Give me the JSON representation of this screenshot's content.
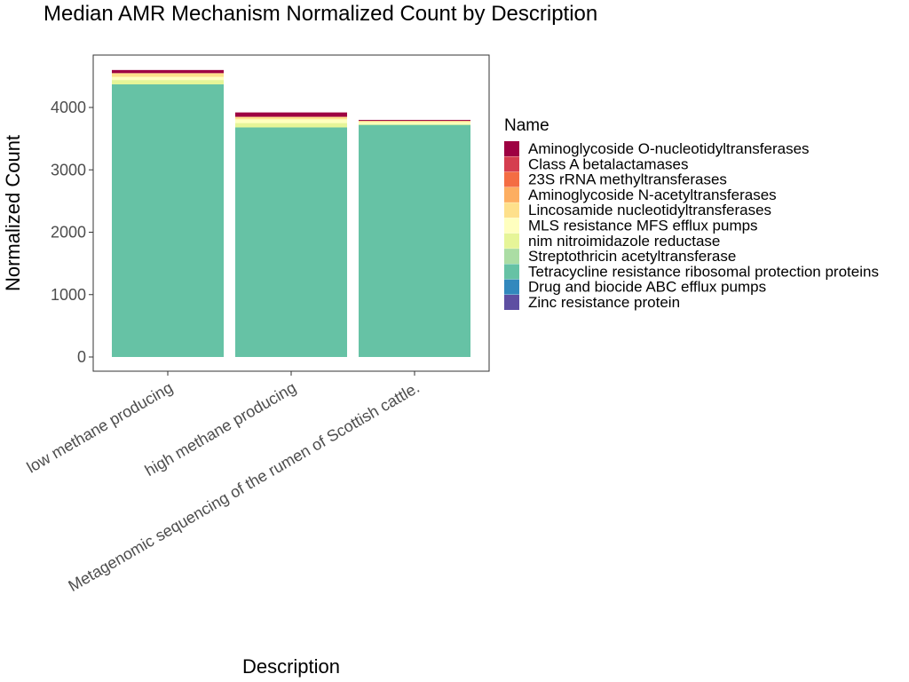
{
  "chart_data": {
    "type": "bar",
    "stacked": true,
    "title": "Median AMR Mechanism Normalized Count by Description",
    "xlabel": "Description",
    "ylabel": "Normalized Count",
    "ylim": [
      -230,
      4780
    ],
    "yticks": [
      0,
      1000,
      2000,
      3000,
      4000
    ],
    "grid": false,
    "legend_position": "right",
    "legend_title": "Name",
    "categories": [
      "low methane producing",
      "high methane producing",
      "Metagenomic sequencing of the rumen of Scottish cattle."
    ],
    "series": [
      {
        "name": "Aminoglycoside O-nucleotidyltransferases",
        "color": "#9E0142",
        "values": [
          50,
          70,
          15
        ]
      },
      {
        "name": "Class A betalactamases",
        "color": "#D53E4F",
        "values": [
          0,
          0,
          0
        ]
      },
      {
        "name": "23S rRNA methyltransferases",
        "color": "#F46D43",
        "values": [
          0,
          0,
          0
        ]
      },
      {
        "name": "Aminoglycoside N-acetyltransferases",
        "color": "#FDAE61",
        "values": [
          0,
          0,
          0
        ]
      },
      {
        "name": "Lincosamide nucleotidyltransferases",
        "color": "#FEE08B",
        "values": [
          60,
          40,
          20
        ]
      },
      {
        "name": "MLS resistance MFS efflux pumps",
        "color": "#FFFFBF",
        "values": [
          50,
          60,
          30
        ]
      },
      {
        "name": "nim nitroimidazole reductase",
        "color": "#E6F598",
        "values": [
          70,
          70,
          15
        ]
      },
      {
        "name": "Streptothricin acetyltransferase",
        "color": "#ABDDA4",
        "values": [
          0,
          0,
          0
        ]
      },
      {
        "name": "Tetracycline resistance ribosomal protection proteins",
        "color": "#66C2A5",
        "values": [
          4370,
          3680,
          3720
        ]
      },
      {
        "name": "Drug and biocide ABC efflux pumps",
        "color": "#3288BD",
        "values": [
          0,
          0,
          0
        ]
      },
      {
        "name": "Zinc resistance protein",
        "color": "#5E4FA2",
        "values": [
          0,
          0,
          0
        ]
      }
    ]
  }
}
